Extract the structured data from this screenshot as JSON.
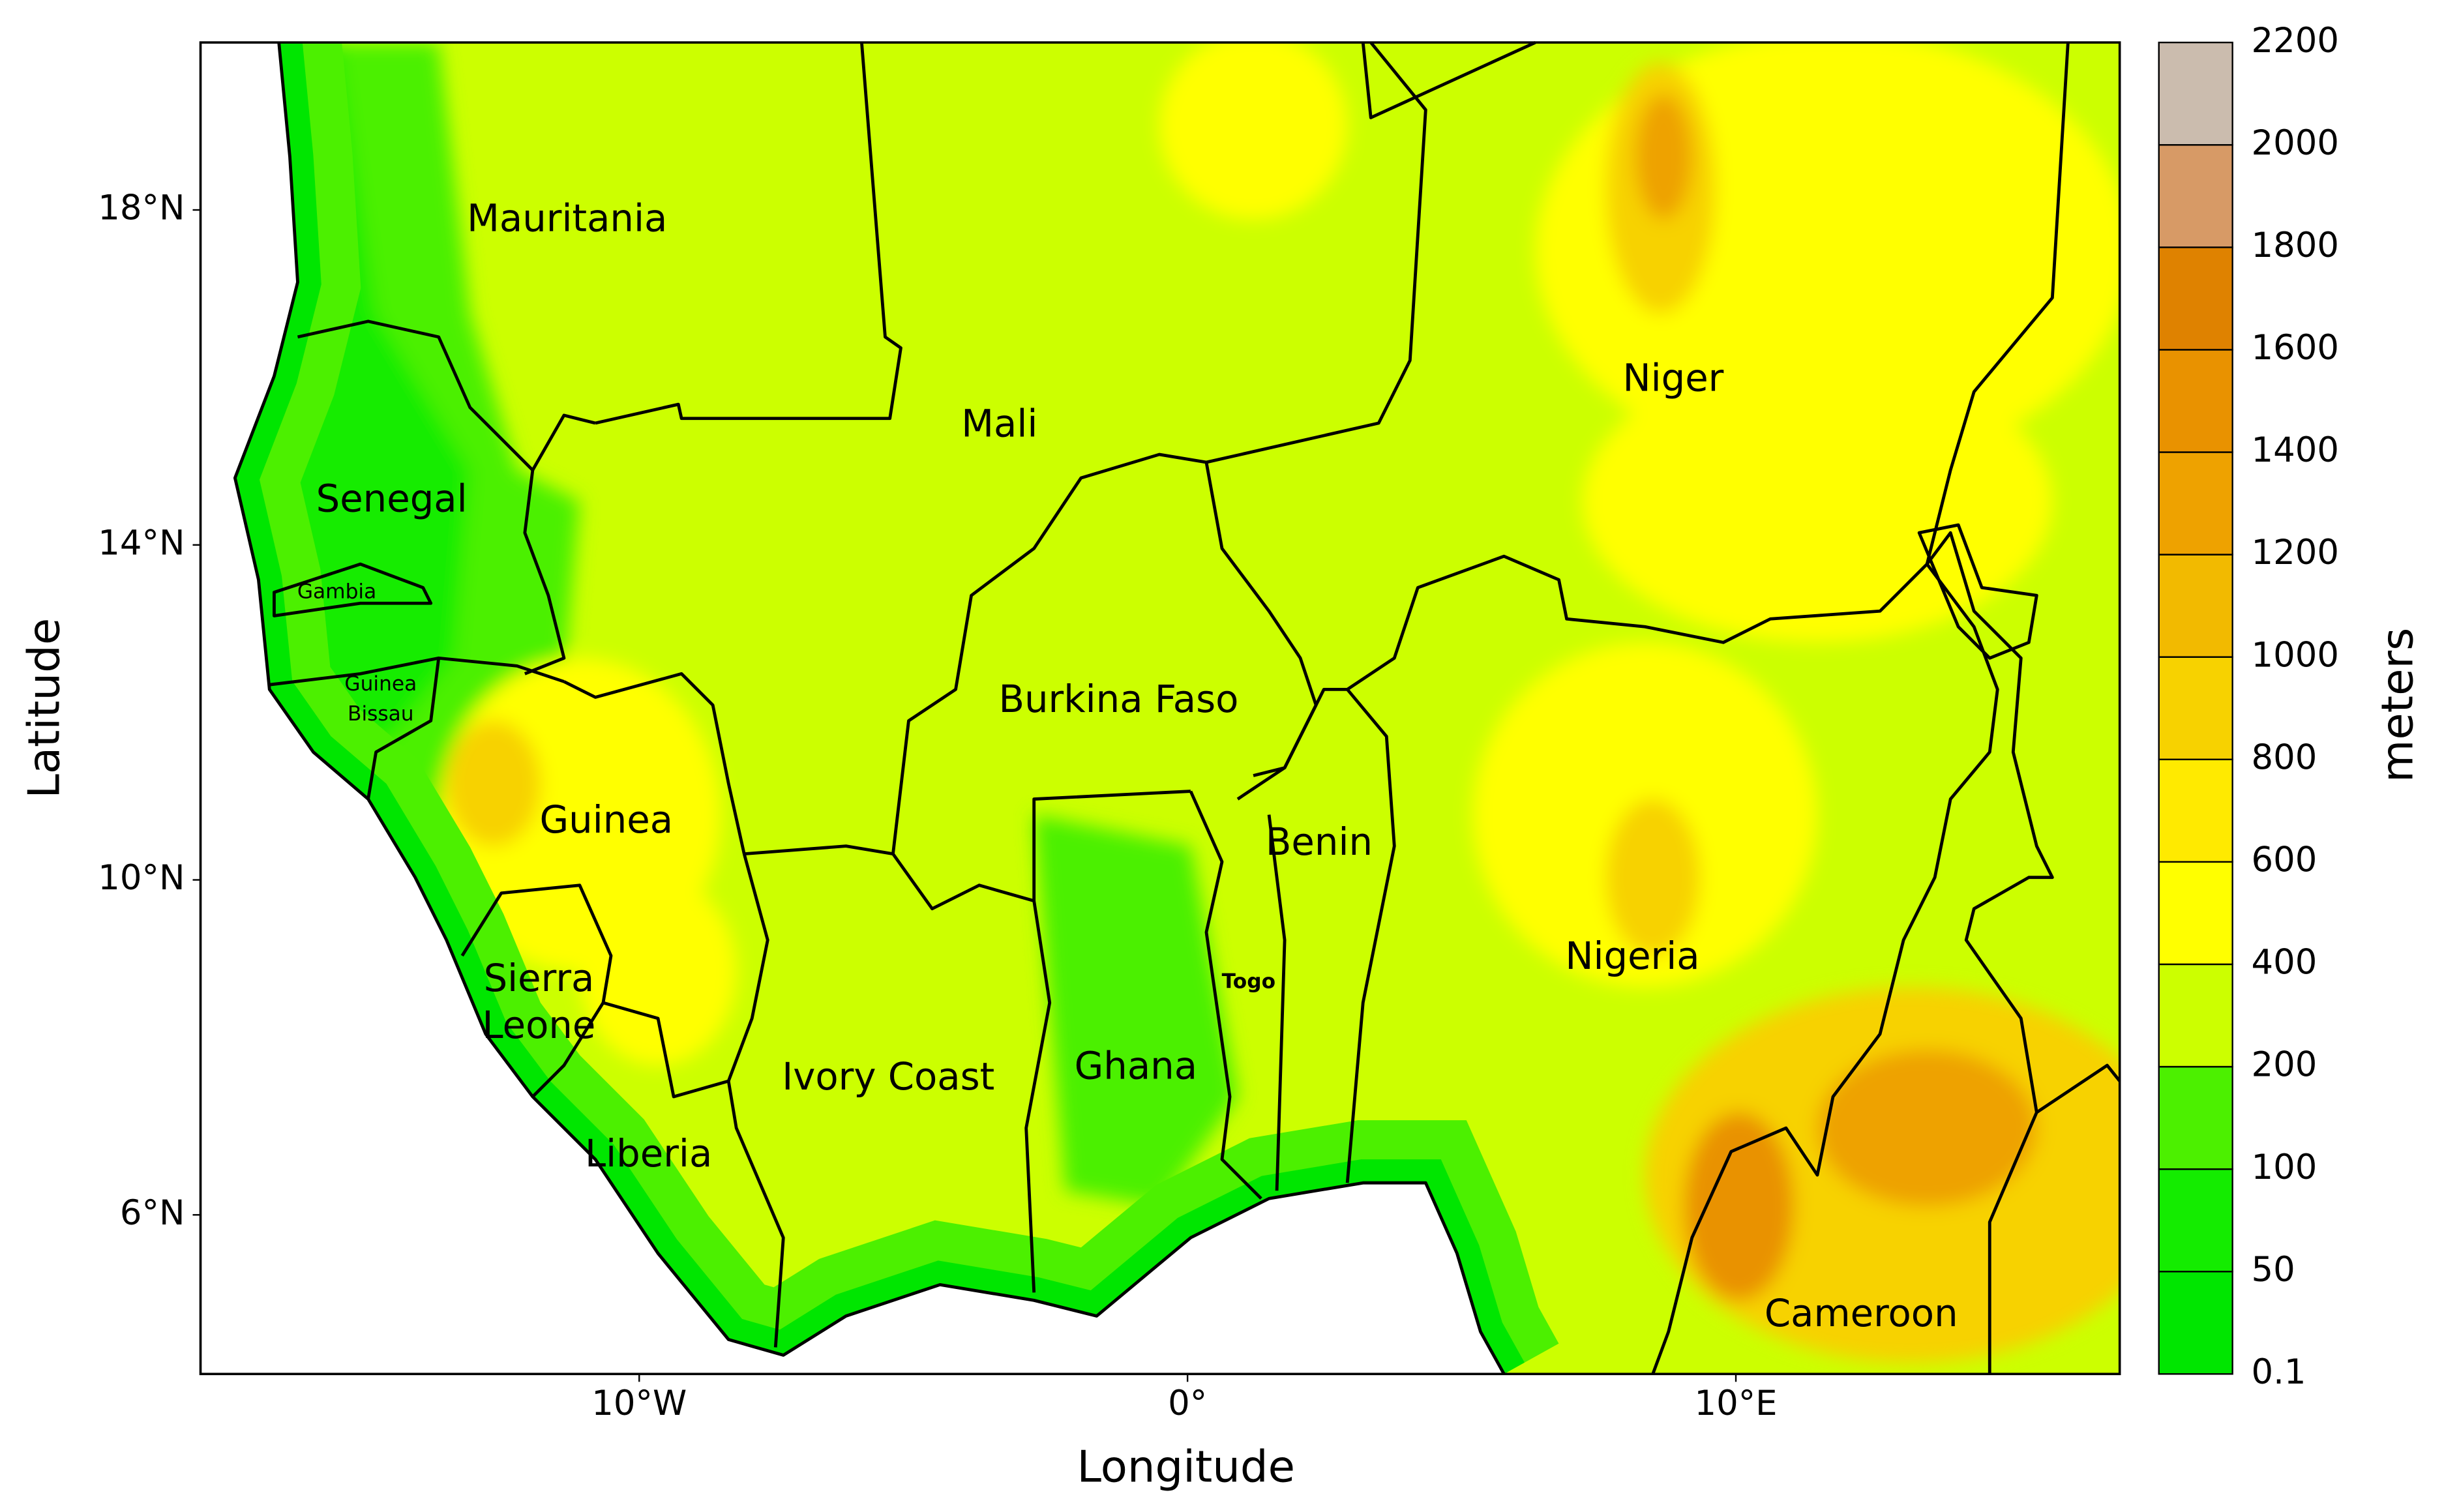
{
  "map": {
    "x_label": "Longitude",
    "y_label": "Latitude",
    "lon_range": [
      -18,
      17
    ],
    "lat_range": [
      4.1,
      20
    ],
    "xticks": [
      {
        "value": -10,
        "label": "10°W"
      },
      {
        "value": 0,
        "label": "0°"
      },
      {
        "value": 10,
        "label": "10°E"
      }
    ],
    "yticks": [
      {
        "value": 6,
        "label": "6°N"
      },
      {
        "value": 10,
        "label": "10°N"
      },
      {
        "value": 14,
        "label": "14°N"
      },
      {
        "value": 18,
        "label": "18°N"
      }
    ],
    "countries": [
      "Mauritania",
      "Mali",
      "Niger",
      "Senegal",
      "Gambia",
      "Guinea",
      "Bissau",
      "Burkina Faso",
      "Benin",
      "Sierra",
      "Leone",
      "Togo",
      "Nigeria",
      "Ivory Coast",
      "Ghana",
      "Liberia",
      "Cameroon"
    ],
    "colorbar": {
      "title": "meters",
      "levels": [
        0.1,
        50,
        100,
        200,
        400,
        600,
        800,
        1000,
        1200,
        1400,
        1600,
        1800,
        2000,
        2200
      ],
      "colors": [
        "#00e600",
        "#14ec00",
        "#4cf000",
        "#ccff00",
        "#ffff00",
        "#ffea00",
        "#f7d200",
        "#f2ba00",
        "#eea200",
        "#e99200",
        "#df8200",
        "#d79a66",
        "#cbbcae"
      ]
    }
  }
}
